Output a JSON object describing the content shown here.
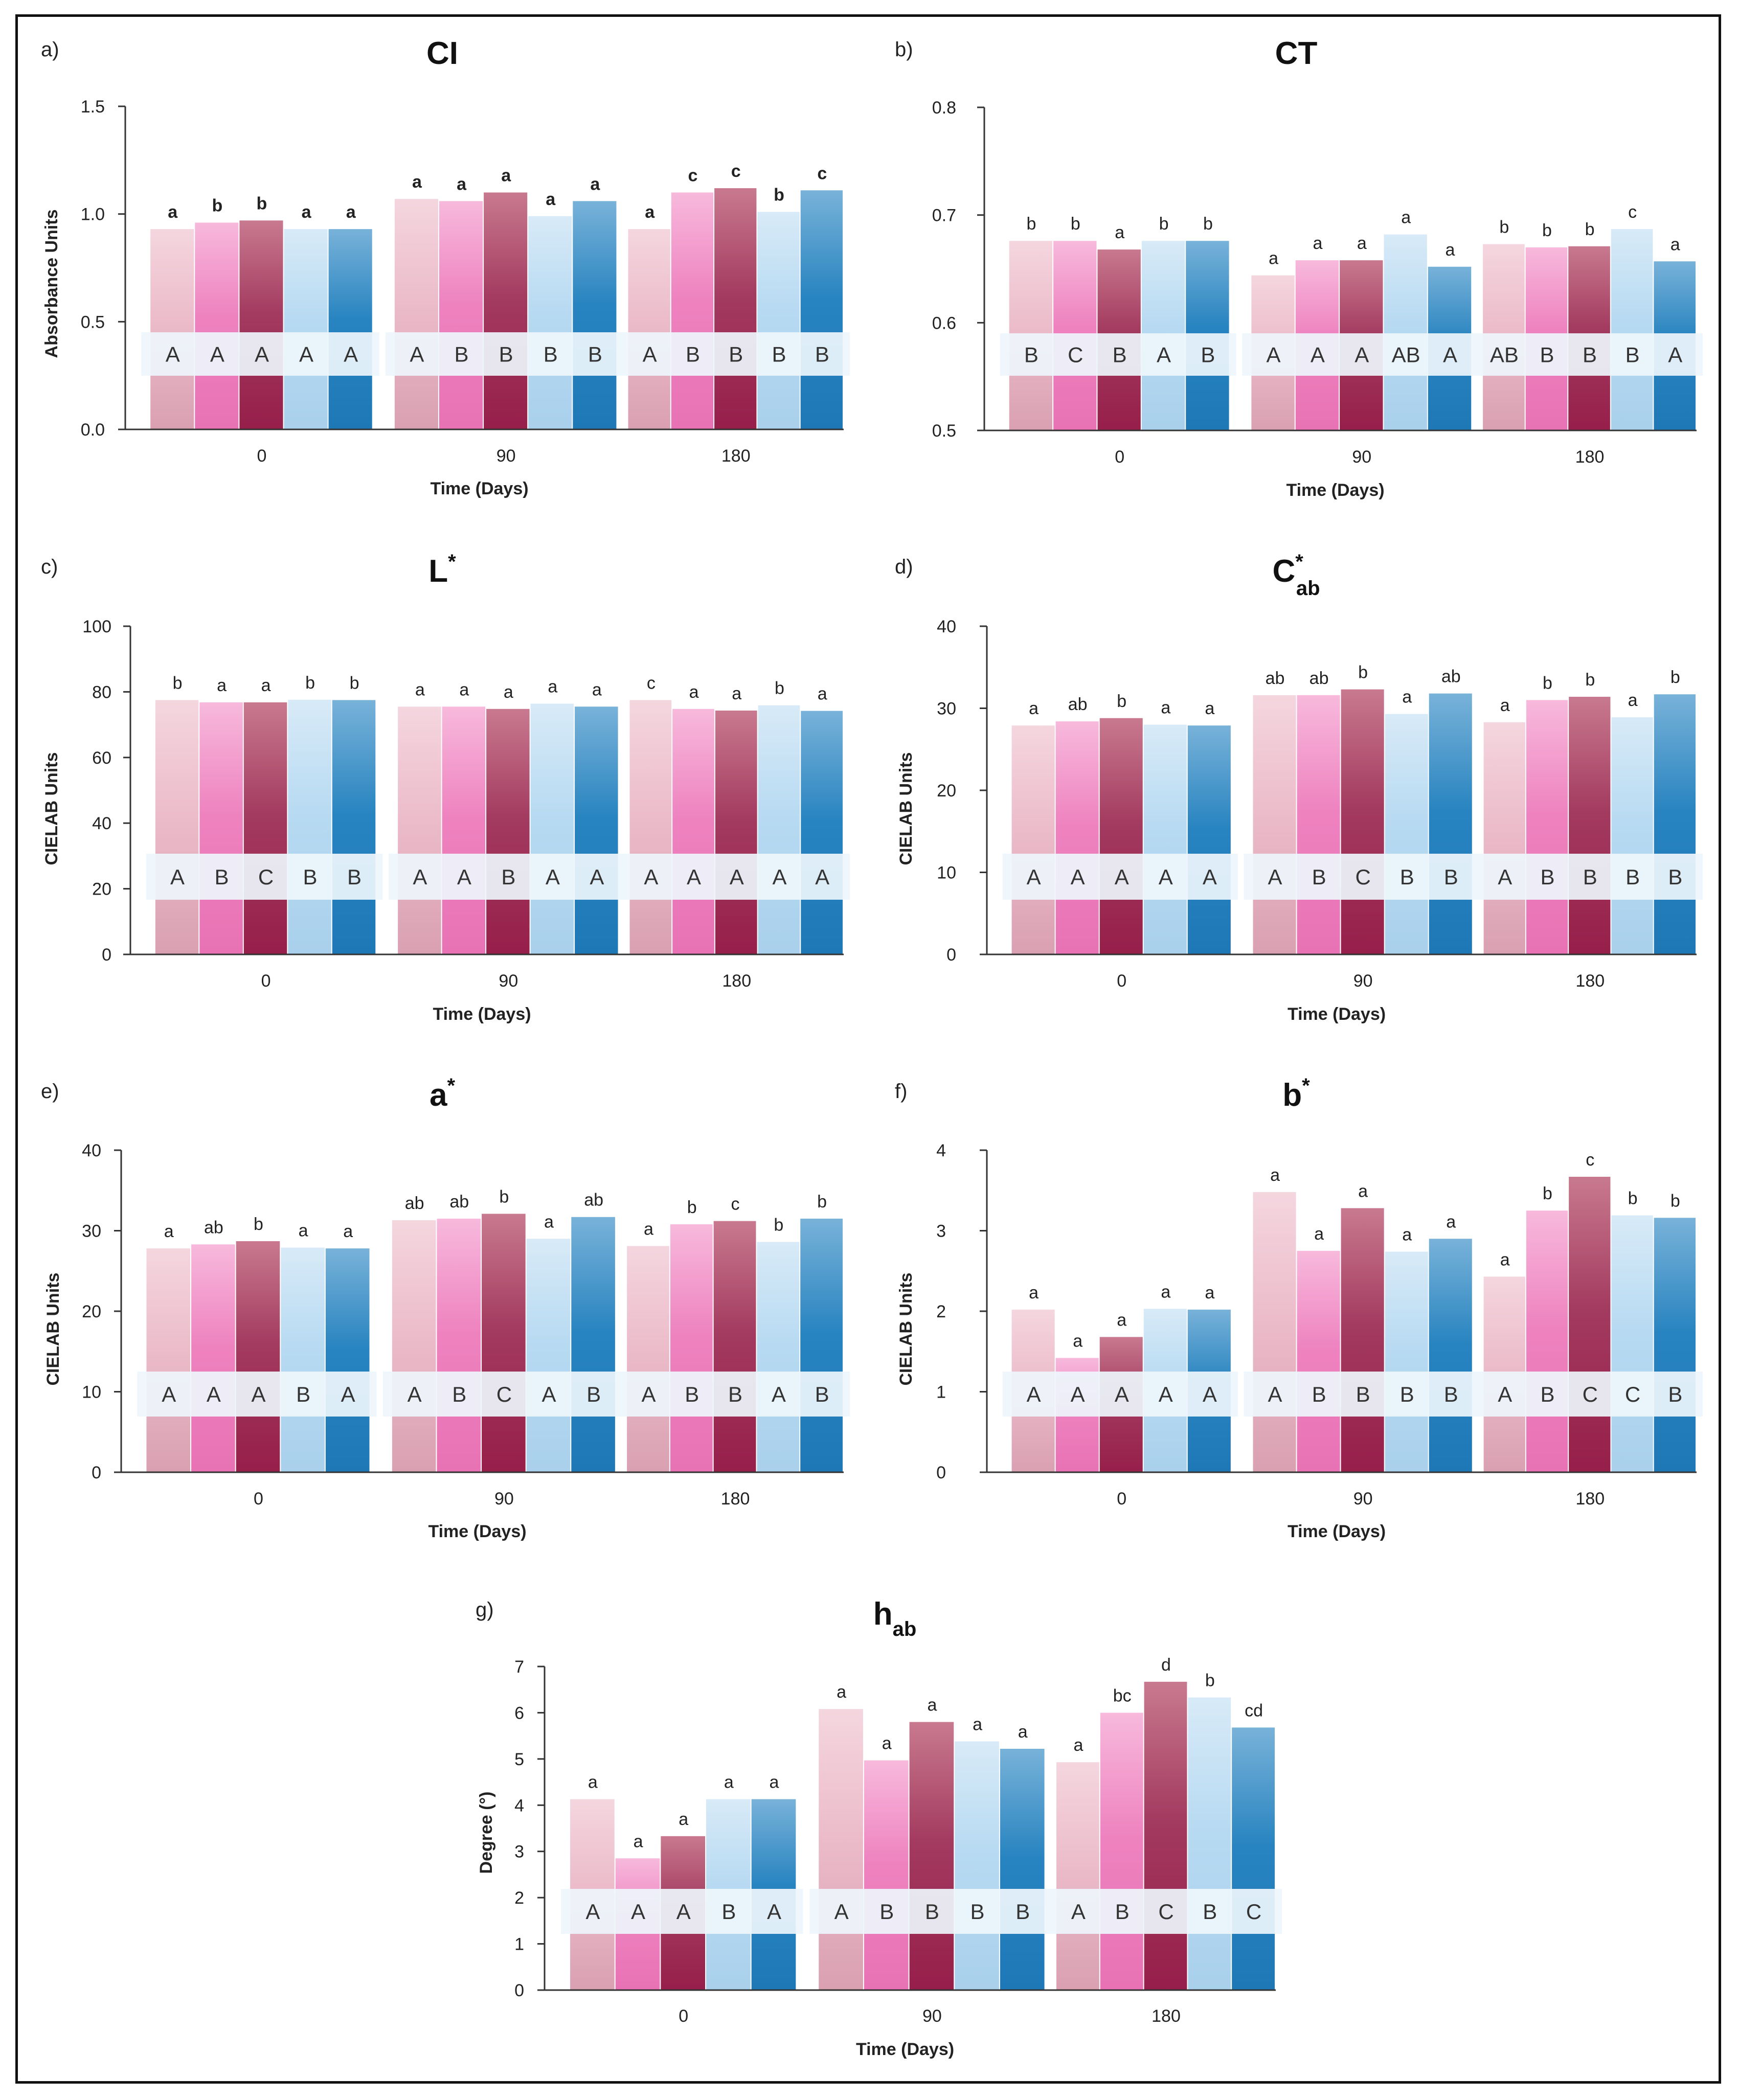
{
  "chart_data": [
    {
      "panel": "a)",
      "title": "CI",
      "type": "bar",
      "ylabel": "Absorbance Units",
      "xlabel": "Time (Days)",
      "ylim": [
        0,
        1.5
      ],
      "yticks": [
        "0.0",
        "0.5",
        "1.0",
        "1.5"
      ],
      "ytick_values": [
        0,
        0.5,
        1.0,
        1.5
      ],
      "categories": [
        "0",
        "90",
        "180"
      ],
      "series": [
        {
          "name": "series-1",
          "values": [
            0.93,
            1.07,
            0.93
          ]
        },
        {
          "name": "series-2",
          "values": [
            0.96,
            1.06,
            1.1
          ]
        },
        {
          "name": "series-3",
          "values": [
            0.97,
            1.1,
            1.12
          ]
        },
        {
          "name": "series-4",
          "values": [
            0.93,
            0.99,
            1.01
          ]
        },
        {
          "name": "series-5",
          "values": [
            0.93,
            1.06,
            1.11
          ]
        }
      ],
      "lower_letters": [
        [
          "a",
          "b",
          "b",
          "a",
          "a"
        ],
        [
          "a",
          "a",
          "a",
          "a",
          "a"
        ],
        [
          "a",
          "c",
          "c",
          "b",
          "c"
        ]
      ],
      "upper_letters": [
        [
          "A",
          "A",
          "A",
          "A",
          "A"
        ],
        [
          "A",
          "B",
          "B",
          "B",
          "B"
        ],
        [
          "A",
          "B",
          "B",
          "B",
          "B"
        ]
      ],
      "lower_bold": true
    },
    {
      "panel": "b)",
      "title": "CT",
      "type": "bar",
      "ylabel": "",
      "xlabel": "Time (Days)",
      "ylim": [
        0.5,
        0.8
      ],
      "yticks": [
        "0.5",
        "0.6",
        "0.7",
        "0.8"
      ],
      "ytick_values": [
        0.5,
        0.6,
        0.7,
        0.8
      ],
      "categories": [
        "0",
        "90",
        "180"
      ],
      "series": [
        {
          "name": "series-1",
          "values": [
            0.676,
            0.644,
            0.673
          ]
        },
        {
          "name": "series-2",
          "values": [
            0.676,
            0.658,
            0.67
          ]
        },
        {
          "name": "series-3",
          "values": [
            0.668,
            0.658,
            0.671
          ]
        },
        {
          "name": "series-4",
          "values": [
            0.676,
            0.682,
            0.687
          ]
        },
        {
          "name": "series-5",
          "values": [
            0.676,
            0.652,
            0.657
          ]
        }
      ],
      "lower_letters": [
        [
          "b",
          "b",
          "a",
          "b",
          "b"
        ],
        [
          "a",
          "a",
          "a",
          "a",
          "a"
        ],
        [
          "b",
          "b",
          "b",
          "c",
          "a"
        ]
      ],
      "upper_letters": [
        [
          "B",
          "C",
          "B",
          "A",
          "B"
        ],
        [
          "A",
          "A",
          "A",
          "AB",
          "A"
        ],
        [
          "AB",
          "B",
          "B",
          "B",
          "A"
        ]
      ],
      "lower_bold": false
    },
    {
      "panel": "c)",
      "title": "L",
      "title_sup": "*",
      "title_sub": "",
      "type": "bar",
      "ylabel": "CIELAB Units",
      "xlabel": "Time (Days)",
      "ylim": [
        0,
        100
      ],
      "yticks": [
        "0",
        "20",
        "40",
        "60",
        "80",
        "100"
      ],
      "ytick_values": [
        0,
        20,
        40,
        60,
        80,
        100
      ],
      "categories": [
        "0",
        "90",
        "180"
      ],
      "series": [
        {
          "name": "series-1",
          "values": [
            77.5,
            75.5,
            77.5
          ]
        },
        {
          "name": "series-2",
          "values": [
            76.8,
            75.5,
            74.8
          ]
        },
        {
          "name": "series-3",
          "values": [
            76.8,
            74.8,
            74.3
          ]
        },
        {
          "name": "series-4",
          "values": [
            77.6,
            76.4,
            75.9
          ]
        },
        {
          "name": "series-5",
          "values": [
            77.5,
            75.5,
            74.2
          ]
        }
      ],
      "lower_letters": [
        [
          "b",
          "a",
          "a",
          "b",
          "b"
        ],
        [
          "a",
          "a",
          "a",
          "a",
          "a"
        ],
        [
          "c",
          "a",
          "a",
          "b",
          "a"
        ]
      ],
      "upper_letters": [
        [
          "A",
          "B",
          "C",
          "B",
          "B"
        ],
        [
          "A",
          "A",
          "B",
          "A",
          "A"
        ],
        [
          "A",
          "A",
          "A",
          "A",
          "A"
        ]
      ],
      "lower_bold": false
    },
    {
      "panel": "d)",
      "title": "C",
      "title_sup": "*",
      "title_sub": "ab",
      "type": "bar",
      "ylabel": "CIELAB Units",
      "xlabel": "Time (Days)",
      "ylim": [
        0,
        40
      ],
      "yticks": [
        "0",
        "10",
        "20",
        "30",
        "40"
      ],
      "ytick_values": [
        0,
        10,
        20,
        30,
        40
      ],
      "categories": [
        "0",
        "90",
        "180"
      ],
      "series": [
        {
          "name": "series-1",
          "values": [
            27.9,
            31.6,
            28.3
          ]
        },
        {
          "name": "series-2",
          "values": [
            28.4,
            31.6,
            31.0
          ]
        },
        {
          "name": "series-3",
          "values": [
            28.8,
            32.3,
            31.4
          ]
        },
        {
          "name": "series-4",
          "values": [
            28.0,
            29.3,
            28.9
          ]
        },
        {
          "name": "series-5",
          "values": [
            27.9,
            31.8,
            31.7
          ]
        }
      ],
      "lower_letters": [
        [
          "a",
          "ab",
          "b",
          "a",
          "a"
        ],
        [
          "ab",
          "ab",
          "b",
          "a",
          "ab"
        ],
        [
          "a",
          "b",
          "b",
          "a",
          "b"
        ]
      ],
      "upper_letters": [
        [
          "A",
          "A",
          "A",
          "A",
          "A"
        ],
        [
          "A",
          "B",
          "C",
          "B",
          "B"
        ],
        [
          "A",
          "B",
          "B",
          "B",
          "B"
        ]
      ],
      "lower_bold": false
    },
    {
      "panel": "e)",
      "title": "a",
      "title_sup": "*",
      "title_sub": "",
      "type": "bar",
      "ylabel": "CIELAB Units",
      "xlabel": "Time (Days)",
      "ylim": [
        0,
        40
      ],
      "yticks": [
        "0",
        "10",
        "20",
        "30",
        "40"
      ],
      "ytick_values": [
        0,
        10,
        20,
        30,
        40
      ],
      "categories": [
        "0",
        "90",
        "180"
      ],
      "series": [
        {
          "name": "series-1",
          "values": [
            27.8,
            31.3,
            28.1
          ]
        },
        {
          "name": "series-2",
          "values": [
            28.3,
            31.5,
            30.8
          ]
        },
        {
          "name": "series-3",
          "values": [
            28.7,
            32.1,
            31.2
          ]
        },
        {
          "name": "series-4",
          "values": [
            27.9,
            29.0,
            28.6
          ]
        },
        {
          "name": "series-5",
          "values": [
            27.8,
            31.7,
            31.5
          ]
        }
      ],
      "lower_letters": [
        [
          "a",
          "ab",
          "b",
          "a",
          "a"
        ],
        [
          "ab",
          "ab",
          "b",
          "a",
          "ab"
        ],
        [
          "a",
          "b",
          "c",
          "b",
          "b"
        ]
      ],
      "upper_letters": [
        [
          "A",
          "A",
          "A",
          "B",
          "A"
        ],
        [
          "A",
          "B",
          "C",
          "A",
          "B"
        ],
        [
          "A",
          "B",
          "B",
          "A",
          "B"
        ]
      ],
      "lower_bold": false
    },
    {
      "panel": "f)",
      "title": "b",
      "title_sup": "*",
      "title_sub": "",
      "type": "bar",
      "ylabel": "CIELAB Units",
      "xlabel": "Time (Days)",
      "ylim": [
        0,
        4
      ],
      "yticks": [
        "0",
        "1",
        "2",
        "3",
        "4"
      ],
      "ytick_values": [
        0,
        1,
        2,
        3,
        4
      ],
      "categories": [
        "0",
        "90",
        "180"
      ],
      "series": [
        {
          "name": "series-1",
          "values": [
            2.02,
            3.48,
            2.43
          ]
        },
        {
          "name": "series-2",
          "values": [
            1.42,
            2.75,
            3.25
          ]
        },
        {
          "name": "series-3",
          "values": [
            1.68,
            3.28,
            3.67
          ]
        },
        {
          "name": "series-4",
          "values": [
            2.03,
            2.74,
            3.19
          ]
        },
        {
          "name": "series-5",
          "values": [
            2.02,
            2.9,
            3.16
          ]
        }
      ],
      "lower_letters": [
        [
          "a",
          "a",
          "a",
          "a",
          "a"
        ],
        [
          "a",
          "a",
          "a",
          "a",
          "a"
        ],
        [
          "a",
          "b",
          "c",
          "b",
          "b"
        ]
      ],
      "upper_letters": [
        [
          "A",
          "A",
          "A",
          "A",
          "A"
        ],
        [
          "A",
          "B",
          "B",
          "B",
          "B"
        ],
        [
          "A",
          "B",
          "C",
          "C",
          "B"
        ]
      ],
      "lower_bold": false
    },
    {
      "panel": "g)",
      "title": "h",
      "title_sup": "",
      "title_sub": "ab",
      "type": "bar",
      "ylabel": "Degree (°)",
      "xlabel": "Time (Days)",
      "ylim": [
        0,
        7
      ],
      "yticks": [
        "0",
        "1",
        "2",
        "3",
        "4",
        "5",
        "6",
        "7"
      ],
      "ytick_values": [
        0,
        1,
        2,
        3,
        4,
        5,
        6,
        7
      ],
      "categories": [
        "0",
        "90",
        "180"
      ],
      "series": [
        {
          "name": "series-1",
          "values": [
            4.13,
            6.08,
            4.93
          ]
        },
        {
          "name": "series-2",
          "values": [
            2.85,
            4.97,
            6.0
          ]
        },
        {
          "name": "series-3",
          "values": [
            3.33,
            5.8,
            6.67
          ]
        },
        {
          "name": "series-4",
          "values": [
            4.13,
            5.38,
            6.33
          ]
        },
        {
          "name": "series-5",
          "values": [
            4.13,
            5.22,
            5.68
          ]
        }
      ],
      "lower_letters": [
        [
          "a",
          "a",
          "a",
          "a",
          "a"
        ],
        [
          "a",
          "a",
          "a",
          "a",
          "a"
        ],
        [
          "a",
          "bc",
          "d",
          "b",
          "cd"
        ]
      ],
      "upper_letters": [
        [
          "A",
          "A",
          "A",
          "B",
          "A"
        ],
        [
          "A",
          "B",
          "B",
          "B",
          "B"
        ],
        [
          "A",
          "B",
          "C",
          "B",
          "C"
        ]
      ],
      "lower_bold": false
    }
  ],
  "colors": {
    "series": [
      "#ecbcca",
      "#ee82bf",
      "#a33a5f",
      "#b7daf2",
      "#2884c0"
    ],
    "series_light": [
      "#f4d6df",
      "#f7b9dc",
      "#c8798f",
      "#d8eaf7",
      "#78b2d9"
    ],
    "series_dark": [
      "#d9a0b1",
      "#e872b4",
      "#961f4a",
      "#a9d0ec",
      "#1e78b6"
    ],
    "band": "#eef6fc"
  }
}
